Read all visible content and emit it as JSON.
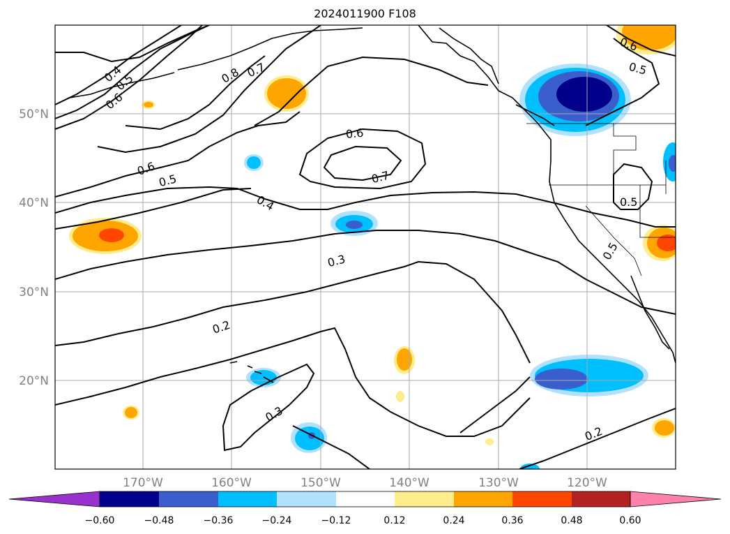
{
  "title": "2024011900 F108",
  "map": {
    "lon_labels": [
      "170°W",
      "160°W",
      "150°W",
      "140°W",
      "130°W",
      "120°W"
    ],
    "lat_labels": [
      "50°N",
      "40°N",
      "30°N",
      "20°N"
    ],
    "contour_labels": [
      "0.4",
      "0.5",
      "0.6",
      "0.8",
      "0.7",
      "0.6",
      "0.7",
      "0.6",
      "0.5",
      "0.4",
      "0.3",
      "0.2",
      "0.3",
      "0.2",
      "0.5",
      "0.5",
      "0.6",
      "0.5"
    ],
    "grid": true
  },
  "colorbar": {
    "ticks": [
      "−0.60",
      "−0.48",
      "−0.36",
      "−0.24",
      "−0.12",
      "0.12",
      "0.24",
      "0.36",
      "0.48",
      "0.60"
    ],
    "colors": [
      "#9932cc",
      "#00008b",
      "#3a5fcd",
      "#00bfff",
      "#b0e2ff",
      "#ffffff",
      "#ffec8b",
      "#ffa500",
      "#ff4500",
      "#b22222",
      "#ff82ab"
    ]
  }
}
